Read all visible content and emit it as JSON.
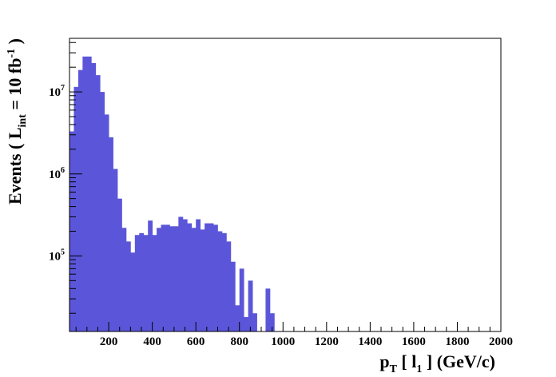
{
  "chart_data": {
    "type": "bar",
    "style": "histogram",
    "bin_width": 20,
    "x_start": 20,
    "xlim": [
      20,
      2000
    ],
    "ylim": [
      12000,
      45000000
    ],
    "y_scale": "log",
    "grid": false,
    "fill_color": "#5b56d9",
    "x_ticks": [
      {
        "value": 200,
        "label": "200"
      },
      {
        "value": 400,
        "label": "400"
      },
      {
        "value": 600,
        "label": "600"
      },
      {
        "value": 800,
        "label": "800"
      },
      {
        "value": 1000,
        "label": "1000"
      },
      {
        "value": 1200,
        "label": "1200"
      },
      {
        "value": 1400,
        "label": "1400"
      },
      {
        "value": 1600,
        "label": "1600"
      },
      {
        "value": 1800,
        "label": "1800"
      },
      {
        "value": 2000,
        "label": "2000"
      }
    ],
    "y_ticks": [
      {
        "value": 100000,
        "base": "10",
        "exp": "5"
      },
      {
        "value": 1000000,
        "base": "10",
        "exp": "6"
      },
      {
        "value": 10000000,
        "base": "10",
        "exp": "7"
      }
    ],
    "xlabel": {
      "p": "p",
      "sub_T": "T",
      "mid": " [ l",
      "sub_1": "1",
      "end": " ] (GeV/c)"
    },
    "ylabel": {
      "start": "Events  ( L",
      "sub_int": "int",
      "mid": " = 10 fb",
      "sup": "-1",
      "end": " )"
    },
    "values": [
      3300000,
      11500000,
      18500000,
      27000000,
      27000000,
      22500000,
      16000000,
      10000000,
      5300000,
      2800000,
      1150000,
      500000,
      220000,
      150000,
      110000,
      180000,
      190000,
      180000,
      270000,
      180000,
      220000,
      240000,
      240000,
      230000,
      230000,
      300000,
      280000,
      250000,
      220000,
      280000,
      210000,
      250000,
      250000,
      240000,
      200000,
      190000,
      150000,
      85000,
      25000,
      70000,
      18000,
      50000,
      20000,
      12000,
      12000,
      40000,
      20000,
      12000,
      12000,
      12000,
      0,
      0,
      0,
      0,
      0,
      0,
      0,
      0,
      0,
      0,
      0,
      0,
      0,
      0,
      0,
      0,
      0,
      0,
      0,
      0,
      0,
      0,
      0,
      0,
      0,
      0,
      0,
      0,
      0,
      0,
      0,
      0,
      0,
      0,
      0,
      0,
      0,
      0,
      0,
      0,
      0,
      0,
      0,
      0,
      0,
      0,
      0,
      0,
      0
    ]
  }
}
